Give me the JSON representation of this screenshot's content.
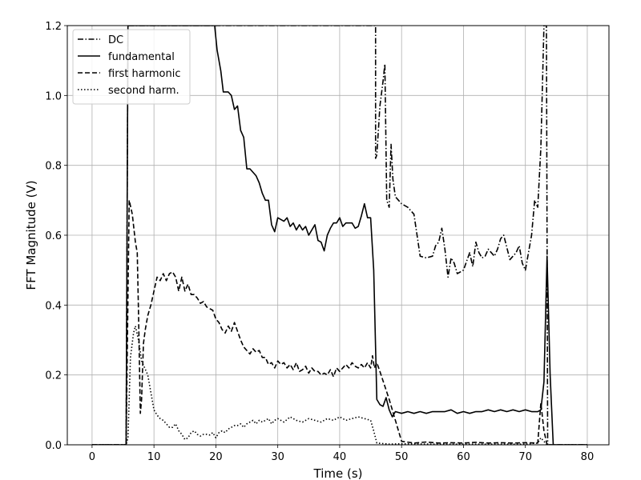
{
  "chart_data": {
    "type": "line",
    "title": "",
    "xlabel": "Time (s)",
    "ylabel": "FFT Magnitude (V)",
    "xlim": [
      -4,
      83.5
    ],
    "ylim": [
      0,
      1.2
    ],
    "xticks": [
      0,
      10,
      20,
      30,
      40,
      50,
      60,
      70,
      80
    ],
    "yticks": [
      0.0,
      0.2,
      0.4,
      0.6,
      0.8,
      1.0,
      1.2
    ],
    "grid": true,
    "legend_position": "top-left",
    "series": [
      {
        "name": "DC",
        "style": "dashdot",
        "x": [
          0,
          5.5,
          5.8,
          45.8,
          45.8,
          46.0,
          46.5,
          47.0,
          47.3,
          47.6,
          48.0,
          48.3,
          48.6,
          49.0,
          49.5,
          50.0,
          51.0,
          52.0,
          53.0,
          54.0,
          55.0,
          55.5,
          56.0,
          56.5,
          57.0,
          57.5,
          58.0,
          58.5,
          59.0,
          60.0,
          61.0,
          61.5,
          62.0,
          62.5,
          63.0,
          63.5,
          64.0,
          65.0,
          65.5,
          66.0,
          66.5,
          67.0,
          67.5,
          68.0,
          68.5,
          69.0,
          69.5,
          70.0,
          70.5,
          71.0,
          71.5,
          72.0,
          72.5,
          73.0,
          73.4,
          73.6,
          74.0,
          80.0
        ],
        "y": [
          0,
          0,
          1.2,
          1.2,
          0.82,
          0.83,
          0.97,
          1.04,
          1.09,
          0.7,
          0.68,
          0.86,
          0.76,
          0.71,
          0.7,
          0.69,
          0.68,
          0.66,
          0.54,
          0.535,
          0.54,
          0.57,
          0.58,
          0.62,
          0.56,
          0.48,
          0.535,
          0.52,
          0.49,
          0.5,
          0.55,
          0.51,
          0.58,
          0.55,
          0.535,
          0.54,
          0.56,
          0.54,
          0.56,
          0.59,
          0.6,
          0.565,
          0.53,
          0.54,
          0.55,
          0.57,
          0.52,
          0.5,
          0.55,
          0.6,
          0.7,
          0.68,
          0.85,
          1.2,
          1.2,
          0,
          0,
          0
        ]
      },
      {
        "name": "fundamental",
        "style": "solid",
        "x": [
          0,
          5.5,
          5.8,
          19.8,
          20.2,
          20.8,
          21.2,
          22.0,
          22.5,
          23.0,
          23.5,
          24.0,
          24.5,
          25.0,
          25.5,
          26.0,
          26.5,
          27.0,
          27.5,
          28.0,
          28.5,
          29.0,
          29.5,
          30.0,
          31.0,
          31.5,
          32.0,
          32.5,
          33.0,
          33.5,
          34.0,
          34.5,
          35.0,
          35.5,
          36.0,
          36.5,
          37.0,
          37.5,
          38.0,
          38.5,
          39.0,
          39.5,
          40.0,
          40.5,
          41.0,
          42.0,
          42.5,
          43.0,
          43.5,
          44.0,
          44.5,
          45.0,
          45.5,
          46.0,
          46.5,
          47.0,
          47.5,
          48.0,
          48.5,
          49.0,
          50.0,
          51.0,
          52.0,
          53.0,
          54.0,
          55.0,
          56.0,
          57.0,
          58.0,
          59.0,
          60.0,
          61.0,
          62.0,
          63.0,
          64.0,
          65.0,
          66.0,
          67.0,
          68.0,
          69.0,
          70.0,
          71.0,
          72.0,
          72.5,
          73.0,
          73.5,
          74.0,
          74.5,
          80.0
        ],
        "y": [
          0,
          0,
          1.2,
          1.2,
          1.13,
          1.07,
          1.01,
          1.01,
          1.0,
          0.96,
          0.97,
          0.9,
          0.88,
          0.79,
          0.79,
          0.78,
          0.77,
          0.75,
          0.72,
          0.7,
          0.7,
          0.63,
          0.61,
          0.65,
          0.64,
          0.65,
          0.625,
          0.635,
          0.615,
          0.63,
          0.615,
          0.625,
          0.6,
          0.615,
          0.63,
          0.585,
          0.58,
          0.555,
          0.6,
          0.62,
          0.635,
          0.635,
          0.65,
          0.625,
          0.635,
          0.635,
          0.62,
          0.625,
          0.655,
          0.69,
          0.65,
          0.65,
          0.5,
          0.13,
          0.115,
          0.11,
          0.135,
          0.1,
          0.08,
          0.095,
          0.09,
          0.095,
          0.09,
          0.095,
          0.09,
          0.095,
          0.095,
          0.095,
          0.1,
          0.09,
          0.095,
          0.09,
          0.095,
          0.095,
          0.1,
          0.095,
          0.1,
          0.095,
          0.1,
          0.095,
          0.1,
          0.095,
          0.095,
          0.1,
          0.18,
          0.54,
          0.2,
          0,
          0
        ]
      },
      {
        "name": "first harmonic",
        "style": "dashed",
        "x": [
          0,
          5.5,
          6.0,
          6.5,
          7.0,
          7.3,
          7.5,
          7.8,
          8.0,
          8.3,
          8.6,
          9.0,
          9.5,
          10.0,
          10.5,
          11.0,
          11.5,
          12.0,
          12.5,
          13.0,
          13.5,
          14.0,
          14.5,
          15.0,
          15.5,
          16.0,
          16.5,
          17.0,
          17.5,
          18.0,
          18.5,
          19.0,
          19.5,
          20.0,
          20.5,
          21.0,
          21.5,
          22.0,
          22.5,
          23.0,
          24.0,
          24.5,
          25.0,
          25.5,
          26.0,
          26.5,
          27.0,
          27.5,
          28.0,
          28.5,
          29.0,
          29.5,
          30.0,
          30.5,
          31.0,
          31.5,
          32.0,
          32.5,
          33.0,
          33.5,
          34.0,
          34.5,
          35.0,
          35.5,
          36.0,
          36.5,
          37.0,
          37.5,
          38.0,
          38.5,
          39.0,
          39.5,
          40.0,
          40.5,
          41.0,
          41.5,
          42.0,
          42.5,
          43.0,
          43.5,
          44.0,
          44.5,
          45.0,
          45.3,
          45.6,
          46.0,
          46.5,
          48.0,
          50.0,
          52.0,
          54.0,
          56.0,
          58.0,
          60.0,
          62.0,
          64.0,
          66.0,
          68.0,
          70.0,
          72.0,
          72.5,
          73.0,
          73.5,
          74.0,
          74.5,
          80.0
        ],
        "y": [
          0,
          0,
          0.7,
          0.66,
          0.58,
          0.55,
          0.38,
          0.09,
          0.13,
          0.29,
          0.33,
          0.37,
          0.4,
          0.44,
          0.48,
          0.47,
          0.49,
          0.47,
          0.49,
          0.495,
          0.48,
          0.44,
          0.48,
          0.44,
          0.46,
          0.43,
          0.43,
          0.42,
          0.405,
          0.41,
          0.395,
          0.39,
          0.385,
          0.36,
          0.35,
          0.33,
          0.32,
          0.34,
          0.325,
          0.35,
          0.3,
          0.28,
          0.27,
          0.26,
          0.275,
          0.265,
          0.27,
          0.25,
          0.25,
          0.23,
          0.235,
          0.22,
          0.24,
          0.23,
          0.235,
          0.22,
          0.23,
          0.215,
          0.235,
          0.21,
          0.215,
          0.225,
          0.205,
          0.22,
          0.21,
          0.21,
          0.2,
          0.205,
          0.2,
          0.215,
          0.195,
          0.22,
          0.21,
          0.22,
          0.23,
          0.22,
          0.235,
          0.225,
          0.22,
          0.23,
          0.22,
          0.235,
          0.22,
          0.255,
          0.22,
          0.235,
          0.21,
          0.13,
          0.01,
          0.005,
          0.008,
          0.005,
          0.006,
          0.005,
          0.007,
          0.005,
          0.006,
          0.005,
          0.006,
          0.005,
          0.12,
          0.04,
          0,
          0,
          0,
          0
        ]
      },
      {
        "name": "second harm.",
        "style": "dotted",
        "x": [
          0,
          5.5,
          5.8,
          6.2,
          6.7,
          7.0,
          7.5,
          8.0,
          8.5,
          9.0,
          9.5,
          10.0,
          10.5,
          11.0,
          11.5,
          12.0,
          12.5,
          13.0,
          13.5,
          14.0,
          14.5,
          15.0,
          15.5,
          16.0,
          16.5,
          17.0,
          17.5,
          18.0,
          18.5,
          19.0,
          19.5,
          20.0,
          20.5,
          21.0,
          21.5,
          22.0,
          22.5,
          23.0,
          23.5,
          24.0,
          24.5,
          25.0,
          25.5,
          26.0,
          26.5,
          27.0,
          27.5,
          28.0,
          28.5,
          29.0,
          29.5,
          30.0,
          31.0,
          32.0,
          33.0,
          34.0,
          35.0,
          36.0,
          37.0,
          38.0,
          39.0,
          40.0,
          41.0,
          42.0,
          43.0,
          44.0,
          45.0,
          45.5,
          46.0,
          48.0,
          50.0,
          55.0,
          60.0,
          65.0,
          70.0,
          72.0,
          72.5,
          73.0,
          73.5,
          74.0,
          80.0
        ],
        "y": [
          0,
          0,
          0.02,
          0.25,
          0.32,
          0.34,
          0.3,
          0.24,
          0.22,
          0.2,
          0.15,
          0.1,
          0.085,
          0.075,
          0.07,
          0.06,
          0.05,
          0.05,
          0.06,
          0.04,
          0.03,
          0.015,
          0.02,
          0.035,
          0.04,
          0.03,
          0.025,
          0.03,
          0.03,
          0.028,
          0.035,
          0.02,
          0.035,
          0.04,
          0.035,
          0.045,
          0.05,
          0.055,
          0.055,
          0.06,
          0.05,
          0.06,
          0.065,
          0.07,
          0.06,
          0.07,
          0.065,
          0.07,
          0.075,
          0.06,
          0.07,
          0.075,
          0.065,
          0.08,
          0.07,
          0.065,
          0.075,
          0.07,
          0.065,
          0.075,
          0.07,
          0.08,
          0.07,
          0.075,
          0.08,
          0.075,
          0.07,
          0.04,
          0.005,
          0.002,
          0.003,
          0.002,
          0.002,
          0.002,
          0.002,
          0.005,
          0.02,
          0.01,
          0,
          0,
          0
        ]
      }
    ]
  }
}
